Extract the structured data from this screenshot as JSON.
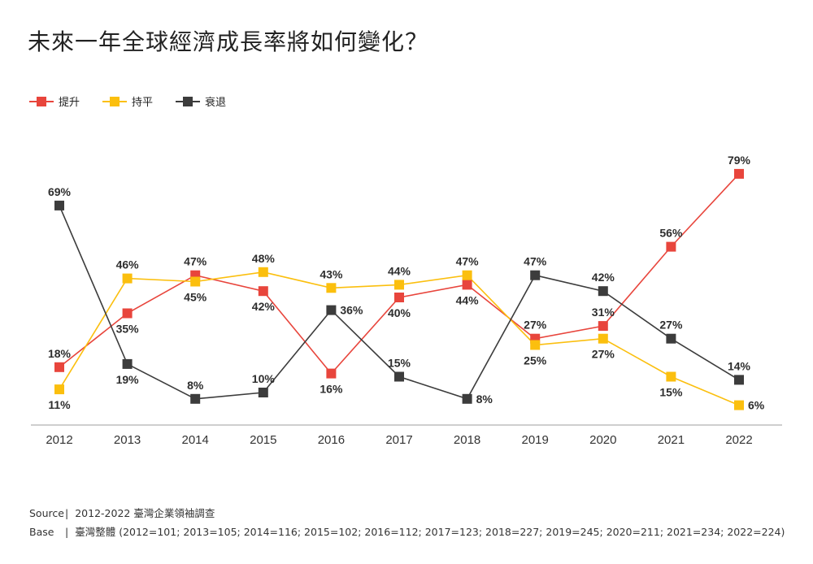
{
  "title": "未來一年全球經濟成長率將如何變化？",
  "footer": {
    "source_label": "Source",
    "source_sep": "|",
    "source_text": "2012-2022 臺灣企業領袖調查",
    "base_label": "Base",
    "base_sep": "|",
    "base_text": "臺灣整體 (2012=101; 2013=105; 2014=116; 2015=102; 2016=112; 2017=123; 2018=227; 2019=245; 2020=211; 2021=234; 2022=224)"
  },
  "chart_data": {
    "type": "line",
    "title": "未來一年全球經濟成長率將如何變化？",
    "xlabel": "",
    "ylabel": "",
    "unit": "%",
    "ylim": [
      0,
      85
    ],
    "grid": false,
    "legend_position": "top-left",
    "x": [
      "2012",
      "2013",
      "2014",
      "2015",
      "2016",
      "2017",
      "2018",
      "2019",
      "2020",
      "2021",
      "2022"
    ],
    "series": [
      {
        "name": "提升",
        "color": "#e8453c",
        "values": [
          18,
          35,
          47,
          42,
          16,
          40,
          44,
          27,
          31,
          56,
          79
        ],
        "label_pos": [
          "above",
          "below",
          "above",
          "below",
          "below",
          "below",
          "below",
          "above",
          "above",
          "above",
          "above"
        ]
      },
      {
        "name": "持平",
        "color": "#fbbf0e",
        "values": [
          11,
          46,
          45,
          48,
          43,
          44,
          47,
          25,
          27,
          15,
          6
        ],
        "label_pos": [
          "below",
          "above",
          "below",
          "above",
          "above",
          "above",
          "above",
          "below",
          "below",
          "below",
          "right"
        ]
      },
      {
        "name": "衰退",
        "color": "#3c3c3c",
        "values": [
          69,
          19,
          8,
          10,
          36,
          15,
          8,
          47,
          42,
          27,
          14
        ],
        "label_pos": [
          "above",
          "below",
          "above",
          "above",
          "right",
          "above",
          "right",
          "above",
          "above",
          "above",
          "above"
        ]
      }
    ]
  }
}
